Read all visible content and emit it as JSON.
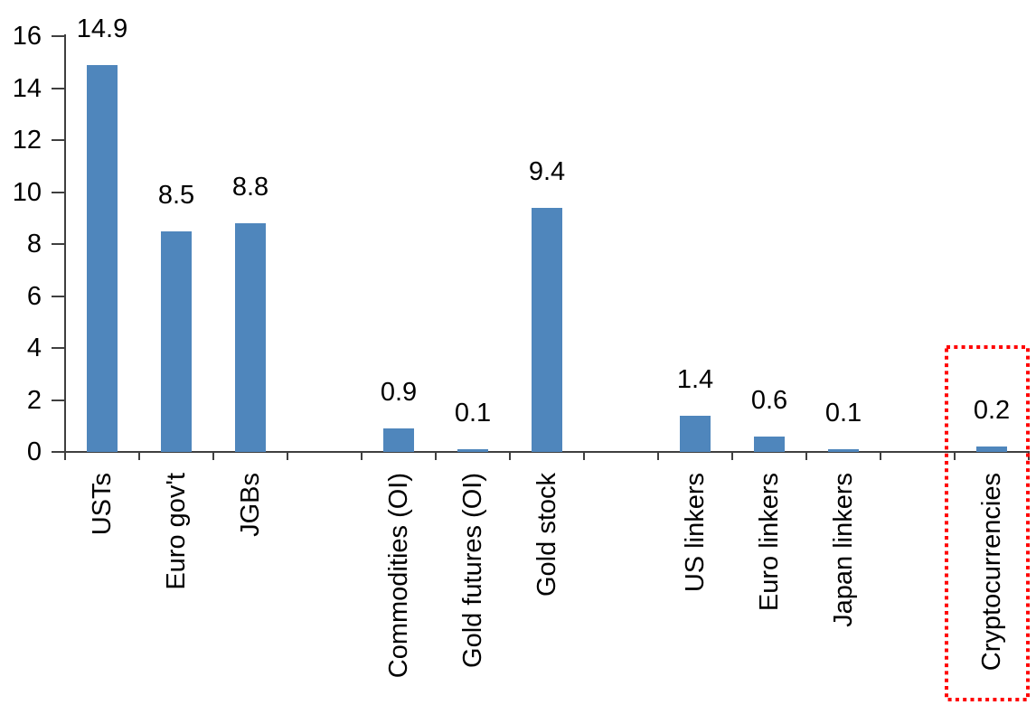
{
  "chart_data": {
    "type": "bar",
    "title": "",
    "xlabel": "",
    "ylabel": "",
    "categories": [
      "USTs",
      "Euro gov't",
      "JGBs",
      "Commodities (OI)",
      "Gold futures (OI)",
      "Gold stock",
      "US linkers",
      "Euro linkers",
      "Japan linkers",
      "Cryptocurrencies"
    ],
    "values": [
      14.9,
      8.5,
      8.8,
      0.9,
      0.1,
      9.4,
      1.4,
      0.6,
      0.1,
      0.2
    ],
    "data_labels": [
      "14.9",
      "8.5",
      "8.8",
      "0.9",
      "0.1",
      "9.4",
      "1.4",
      "0.6",
      "0.1",
      "0.2"
    ],
    "slot_indices": [
      1,
      2,
      3,
      5,
      6,
      7,
      9,
      10,
      11,
      13
    ],
    "total_slots": 13,
    "group_gaps_after": [
      "JGBs",
      "Gold stock",
      "Japan linkers"
    ],
    "ylim": [
      0,
      16
    ],
    "y_tick_step": 2,
    "y_tick_labels": [
      "0",
      "2",
      "4",
      "6",
      "8",
      "10",
      "12",
      "14",
      "16"
    ],
    "grid": false,
    "legend": false,
    "bar_color": "#4F86BC",
    "axis_color": "#3F3F3F",
    "text_color": "#000000",
    "highlight": {
      "category": "Cryptocurrencies",
      "value_label": "0.2",
      "box_color": "#FF0000",
      "box_style": "dotted"
    }
  }
}
